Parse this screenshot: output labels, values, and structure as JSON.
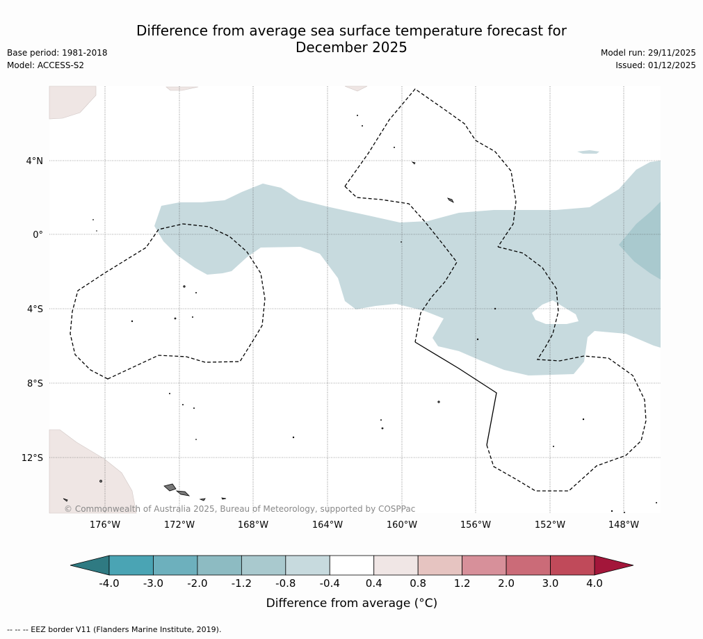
{
  "title": {
    "line1": "Difference from average sea surface temperature forecast for",
    "line2": "December 2025"
  },
  "meta_left": {
    "base_period": "Base period: 1981-2018",
    "model": "Model: ACCESS-S2"
  },
  "meta_right": {
    "model_run": "Model run: 29/11/2025",
    "issued": "Issued: 01/12/2025"
  },
  "map": {
    "lon_labels": [
      "176°W",
      "172°W",
      "168°W",
      "164°W",
      "160°W",
      "156°W",
      "152°W",
      "148°W"
    ],
    "lat_labels": [
      "4°N",
      "0°",
      "4°S",
      "8°S",
      "12°S"
    ],
    "copyright": "© Commonwealth of Australia 2025, Bureau of Meteorology, supported by COSPPac"
  },
  "colorbar": {
    "ticks": [
      "-4.0",
      "-3.0",
      "-2.0",
      "-1.2",
      "-0.8",
      "-0.4",
      "0.4",
      "0.8",
      "1.2",
      "2.0",
      "3.0",
      "4.0"
    ],
    "colors": [
      "#4aa4b4",
      "#6db0bd",
      "#8dbbc2",
      "#a9c9ce",
      "#c7dade",
      "#ffffff",
      "#f0e6e5",
      "#e6c4c1",
      "#d7909a",
      "#cb6b78",
      "#c04a5a"
    ],
    "extend_low_color": "#2f7a82",
    "extend_high_color": "#a3163a",
    "title": "Difference from average (°C)"
  },
  "footer": "--  --  -- EEZ border V11 (Flanders Marine Institute, 2019)."
}
